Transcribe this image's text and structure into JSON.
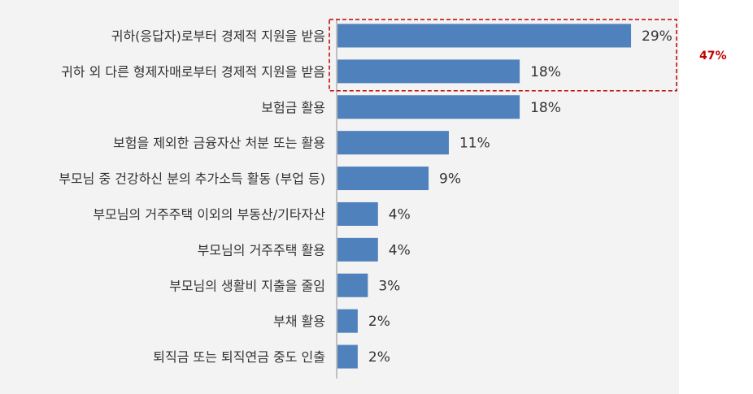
{
  "chart_data": {
    "type": "bar",
    "orientation": "horizontal",
    "categories": [
      "귀하(응답자)로부터 경제적 지원을 받음",
      "귀하 외 다른 형제자매로부터 경제적 지원을 받음",
      "보험금 활용",
      "보험을 제외한 금융자산 처분 또는 활용",
      "부모님 중 건강하신 분의 추가소득 활동 (부업 등)",
      "부모님의 거주주택 이외의 부동산/기타자산",
      "부모님의 거주주택 활용",
      "부모님의 생활비 지출을 줄임",
      "부채 활용",
      "퇴직금 또는 퇴직연금 중도 인출"
    ],
    "values": [
      29,
      18,
      18,
      11,
      9,
      4,
      4,
      3,
      2,
      2
    ],
    "value_labels": [
      "29%",
      "18%",
      "18%",
      "11%",
      "9%",
      "4%",
      "4%",
      "3%",
      "2%",
      "2%"
    ],
    "bar_color": "#4f81bd",
    "annotation": {
      "text": "47%",
      "color": "#c00000",
      "spans_categories": [
        0,
        1
      ]
    },
    "grid": false,
    "legend": "none"
  }
}
